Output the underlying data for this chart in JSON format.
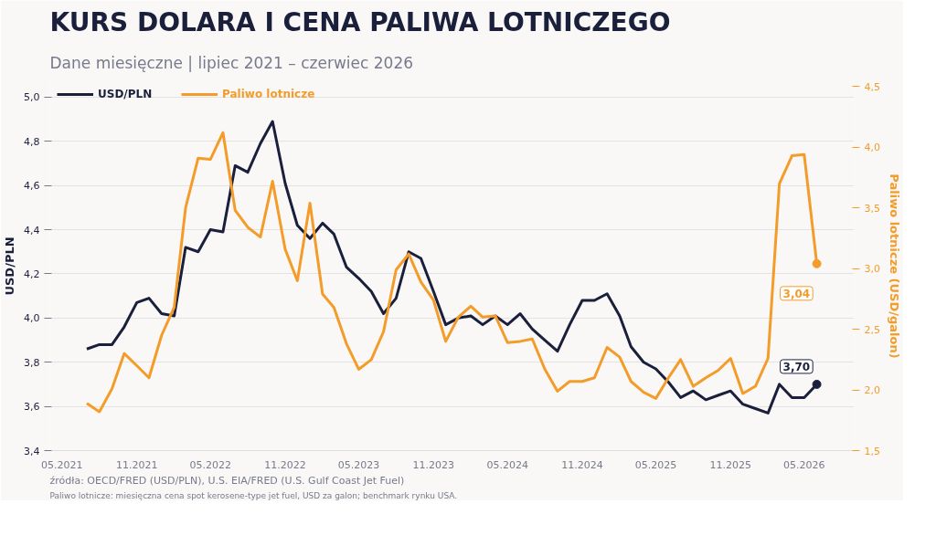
{
  "chart_data": {
    "type": "line",
    "title": "KURS DOLARA I CENA PALIWA LOTNICZEGO",
    "subtitle": "Dane miesięczne | lipiec 2021 – czerwiec 2026",
    "ylabel": "USD/PLN",
    "y2label": "Paliwo lotnicze (USD/galon)",
    "x": [
      "2021-07",
      "2021-08",
      "2021-09",
      "2021-10",
      "2021-11",
      "2021-12",
      "2022-01",
      "2022-02",
      "2022-03",
      "2022-04",
      "2022-05",
      "2022-06",
      "2022-07",
      "2022-08",
      "2022-09",
      "2022-10",
      "2022-11",
      "2022-12",
      "2023-01",
      "2023-02",
      "2023-03",
      "2023-04",
      "2023-05",
      "2023-06",
      "2023-07",
      "2023-08",
      "2023-09",
      "2023-10",
      "2023-11",
      "2023-12",
      "2024-01",
      "2024-02",
      "2024-03",
      "2024-04",
      "2024-05",
      "2024-06",
      "2024-07",
      "2024-08",
      "2024-09",
      "2024-10",
      "2024-11",
      "2024-12",
      "2025-01",
      "2025-02",
      "2025-03",
      "2025-04",
      "2025-05",
      "2025-06",
      "2025-07",
      "2025-08",
      "2025-09",
      "2025-10",
      "2025-11",
      "2025-12",
      "2026-01",
      "2026-02",
      "2026-03",
      "2026-04",
      "2026-05",
      "2026-06"
    ],
    "series": [
      {
        "name": "USD/PLN",
        "color": "#1a1f3c",
        "values": [
          3.86,
          3.88,
          3.88,
          3.96,
          4.07,
          4.09,
          4.02,
          4.01,
          4.32,
          4.3,
          4.4,
          4.39,
          4.69,
          4.66,
          4.79,
          4.89,
          4.61,
          4.42,
          4.36,
          4.43,
          4.38,
          4.23,
          4.18,
          4.12,
          4.02,
          4.09,
          4.3,
          4.27,
          4.12,
          3.97,
          4.0,
          4.01,
          3.97,
          4.01,
          3.97,
          4.02,
          3.95,
          3.9,
          3.85,
          3.97,
          4.08,
          4.08,
          4.11,
          4.01,
          3.87,
          3.8,
          3.77,
          3.71,
          3.64,
          3.67,
          3.63,
          3.65,
          3.67,
          3.61,
          3.59,
          3.57,
          3.7,
          3.64,
          3.64,
          3.7
        ],
        "value_labels": [
          null,
          null,
          null,
          null,
          null,
          null,
          null,
          null,
          null,
          null,
          null,
          null,
          null,
          null,
          null,
          null,
          null,
          null,
          null,
          null,
          null,
          null,
          null,
          null,
          null,
          null,
          null,
          null,
          null,
          null,
          null,
          null,
          null,
          null,
          null,
          null,
          null,
          null,
          null,
          null,
          null,
          null,
          null,
          null,
          null,
          null,
          null,
          null,
          null,
          null,
          null,
          null,
          null,
          null,
          null,
          null,
          null,
          null,
          null,
          "3,70"
        ]
      },
      {
        "name": "Paliwo lotnicze",
        "color": "#f39c2a",
        "axis": "y2",
        "values": [
          1.89,
          1.82,
          2.01,
          2.3,
          2.2,
          2.1,
          2.45,
          2.68,
          3.5,
          3.91,
          3.9,
          4.12,
          3.48,
          3.34,
          3.26,
          3.72,
          3.16,
          2.9,
          3.54,
          2.79,
          2.68,
          2.38,
          2.17,
          2.25,
          2.48,
          2.99,
          3.12,
          2.89,
          2.74,
          2.4,
          2.6,
          2.69,
          2.6,
          2.61,
          2.39,
          2.4,
          2.42,
          2.17,
          1.99,
          2.07,
          2.07,
          2.1,
          2.35,
          2.27,
          2.07,
          1.98,
          1.93,
          2.1,
          2.25,
          2.03,
          2.1,
          2.16,
          2.26,
          1.97,
          2.03,
          2.26,
          3.7,
          3.93,
          3.94,
          3.04
        ],
        "value_labels": [
          null,
          null,
          null,
          null,
          null,
          null,
          null,
          null,
          null,
          null,
          null,
          null,
          null,
          null,
          null,
          null,
          null,
          null,
          null,
          null,
          null,
          null,
          null,
          null,
          null,
          null,
          null,
          null,
          null,
          null,
          null,
          null,
          null,
          null,
          null,
          null,
          null,
          null,
          null,
          null,
          null,
          null,
          null,
          null,
          null,
          null,
          null,
          null,
          null,
          null,
          null,
          null,
          null,
          null,
          null,
          null,
          null,
          null,
          null,
          "3,04"
        ]
      }
    ],
    "xlim": [
      "2021-04",
      "2026-09"
    ],
    "xticks": [
      {
        "value": "2021-05",
        "label": "05.2021"
      },
      {
        "value": "2021-11",
        "label": "11.2021"
      },
      {
        "value": "2022-05",
        "label": "05.2022"
      },
      {
        "value": "2022-11",
        "label": "11.2022"
      },
      {
        "value": "2023-05",
        "label": "05.2023"
      },
      {
        "value": "2023-11",
        "label": "11.2023"
      },
      {
        "value": "2024-05",
        "label": "05.2024"
      },
      {
        "value": "2024-11",
        "label": "11.2024"
      },
      {
        "value": "2025-05",
        "label": "05.2025"
      },
      {
        "value": "2025-11",
        "label": "11.2025"
      },
      {
        "value": "2026-05",
        "label": "05.2026"
      }
    ],
    "ylim": [
      3.4,
      5.07
    ],
    "yticks": [
      {
        "value": 3.4,
        "label": "3,4"
      },
      {
        "value": 3.6,
        "label": "3,6"
      },
      {
        "value": 3.8,
        "label": "3,8"
      },
      {
        "value": 4.0,
        "label": "4,0"
      },
      {
        "value": 4.2,
        "label": "4,2"
      },
      {
        "value": 4.4,
        "label": "4,4"
      },
      {
        "value": 4.6,
        "label": "4,6"
      },
      {
        "value": 4.8,
        "label": "4,8"
      },
      {
        "value": 5.0,
        "label": "5,0"
      }
    ],
    "y2lim": [
      1.5,
      4.54
    ],
    "y2ticks": [
      {
        "value": 1.5,
        "label": "1,5"
      },
      {
        "value": 2.0,
        "label": "2,0"
      },
      {
        "value": 2.5,
        "label": "2,5"
      },
      {
        "value": 3.0,
        "label": "3,0"
      },
      {
        "value": 3.5,
        "label": "3,5"
      },
      {
        "value": 4.0,
        "label": "4,0"
      },
      {
        "value": 4.5,
        "label": "4,5"
      }
    ],
    "grid": "y",
    "legend": "top left",
    "line_style": "solid",
    "annotations": [
      "źródła: OECD/FRED (USD/PLN), U.S. EIA/FRED (U.S. Gulf Coast Jet Fuel)",
      "Paliwo lotnicze: miesięczna cena spot kerosene-type jet fuel, USD za galon; benchmark rynku USA."
    ]
  }
}
